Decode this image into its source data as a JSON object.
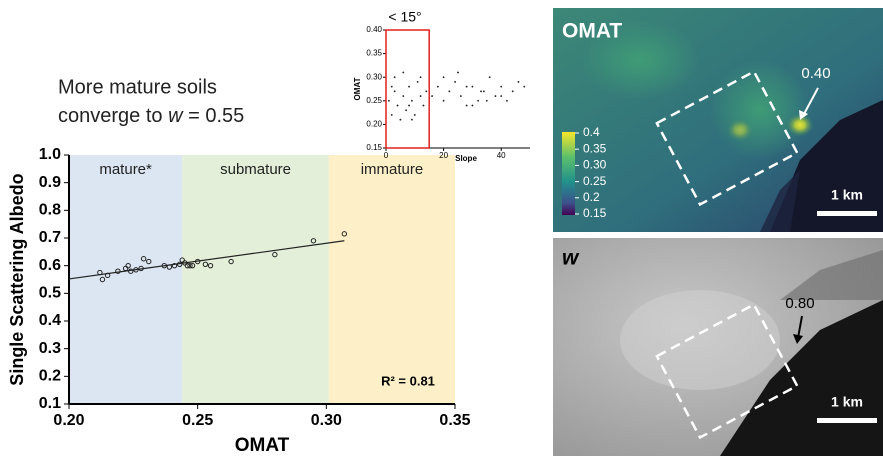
{
  "chart_data": [
    {
      "type": "scatter",
      "annotation_lines": [
        "More mature soils",
        "converge to"
      ],
      "annotation_symbol": "w",
      "annotation_tail": " = 0.55",
      "x_label": "OMAT",
      "y_label": "Single Scattering Albedo",
      "xlim": [
        0.2,
        0.35
      ],
      "xticks": [
        {
          "value": 0.2,
          "label": "0.20"
        },
        0.25,
        {
          "value": 0.3,
          "label": "0.30"
        },
        0.35
      ],
      "ylim": [
        0.1,
        1.0
      ],
      "yticks": [
        0.1,
        0.2,
        0.3,
        0.4,
        0.5,
        0.6,
        0.7,
        0.8,
        0.9,
        {
          "value": 1.0,
          "label": "1.0"
        }
      ],
      "regions": [
        {
          "name": "mature*",
          "range": [
            0.2,
            0.244
          ],
          "color": "#dce6f2"
        },
        {
          "name": "submature",
          "range": [
            0.244,
            0.301
          ],
          "color": "#e3efd9"
        },
        {
          "name": "immature",
          "range": [
            0.301,
            0.35
          ],
          "color": "#fdf0c8"
        }
      ],
      "trendline": {
        "x": [
          0.2,
          0.307
        ],
        "y": [
          0.552,
          0.69
        ],
        "color": "#222222"
      },
      "stat_label": "R² = 0.81",
      "color": "#222222",
      "x": [
        0.212,
        0.213,
        0.215,
        0.219,
        0.222,
        0.223,
        0.224,
        0.226,
        0.228,
        0.229,
        0.231,
        0.237,
        0.239,
        0.241,
        0.243,
        0.244,
        0.245,
        0.246,
        0.247,
        0.248,
        0.25,
        0.253,
        0.255,
        0.263,
        0.28,
        0.295,
        0.307
      ],
      "y": [
        0.575,
        0.55,
        0.565,
        0.58,
        0.59,
        0.6,
        0.58,
        0.585,
        0.59,
        0.625,
        0.615,
        0.6,
        0.595,
        0.6,
        0.605,
        0.62,
        0.61,
        0.6,
        0.6,
        0.6,
        0.615,
        0.605,
        0.6,
        0.615,
        0.64,
        0.69,
        0.715
      ]
    },
    {
      "type": "scatter",
      "title": "< 15°",
      "x_label": "Slope",
      "y_label": "OMAT",
      "xlim": [
        0,
        50
      ],
      "xticks": [
        0,
        20,
        40
      ],
      "ylim": [
        0.15,
        0.4
      ],
      "yticks": [
        0.15,
        {
          "value": 0.2,
          "label": "0.20"
        },
        0.25,
        {
          "value": 0.3,
          "label": "0.30"
        },
        0.35,
        {
          "value": 0.4,
          "label": "0.40"
        }
      ],
      "highlight": {
        "x": [
          0,
          15
        ],
        "color": "#e02020"
      },
      "color": "#222222",
      "x": [
        1,
        2,
        3,
        4,
        5,
        6,
        7,
        8,
        9,
        10,
        11,
        12,
        13,
        14,
        3,
        6,
        9,
        12,
        2,
        8,
        16,
        18,
        20,
        22,
        24,
        26,
        28,
        30,
        32,
        34,
        36,
        38,
        40,
        42,
        44,
        46,
        48,
        25,
        30,
        35,
        20,
        40,
        28,
        33
      ],
      "y": [
        0.25,
        0.22,
        0.27,
        0.24,
        0.21,
        0.26,
        0.23,
        0.28,
        0.25,
        0.22,
        0.29,
        0.26,
        0.24,
        0.27,
        0.3,
        0.31,
        0.21,
        0.3,
        0.28,
        0.24,
        0.26,
        0.28,
        0.25,
        0.27,
        0.29,
        0.26,
        0.24,
        0.28,
        0.25,
        0.27,
        0.3,
        0.26,
        0.28,
        0.25,
        0.27,
        0.29,
        0.28,
        0.31,
        0.24,
        0.25,
        0.3,
        0.26,
        0.28,
        0.27
      ]
    }
  ],
  "panels": [
    {
      "label": "OMAT",
      "annotation": "0.40",
      "scale_bar": "1 km",
      "colorbar": {
        "ticks": [
          0.4,
          0.35,
          {
            "value": 0.3,
            "label": "0.30"
          },
          0.25,
          0.2,
          0.15
        ]
      }
    },
    {
      "label": "w",
      "annotation": "0.80",
      "scale_bar": "1 km"
    }
  ]
}
